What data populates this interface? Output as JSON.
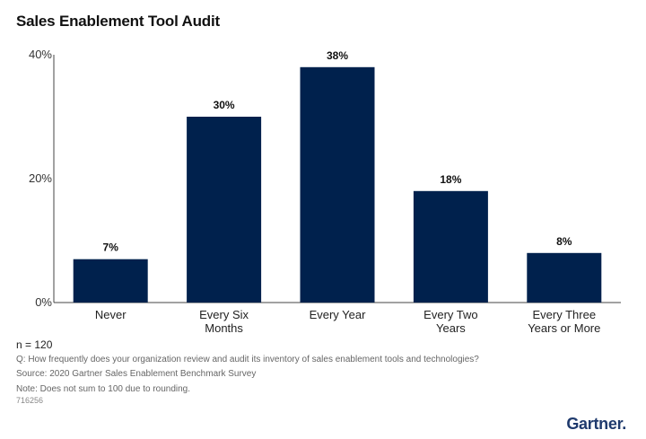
{
  "title": "Sales Enablement Tool Audit",
  "chart_data": {
    "type": "bar",
    "categories": [
      [
        "Never"
      ],
      [
        "Every Six",
        "Months"
      ],
      [
        "Every Year"
      ],
      [
        "Every Two",
        "Years"
      ],
      [
        "Every Three",
        "Years or More"
      ]
    ],
    "values": [
      7,
      30,
      38,
      18,
      8
    ],
    "data_labels": [
      "7%",
      "30%",
      "38%",
      "18%",
      "8%"
    ],
    "y_ticks": [
      0,
      20,
      40
    ],
    "y_tick_labels": [
      "0%",
      "20%",
      "40%"
    ],
    "ylim": [
      0,
      40
    ],
    "grid": false,
    "bar_color": "#00214d"
  },
  "footnotes": {
    "n": "n = 120",
    "question": "Q: How frequently does your organization review and audit its inventory of sales enablement tools and technologies?",
    "source": "Source: 2020 Gartner Sales Enablement Benchmark Survey",
    "note": "Note: Does not sum to 100 due to rounding."
  },
  "doc_id": "716256",
  "logo": "Gartner"
}
